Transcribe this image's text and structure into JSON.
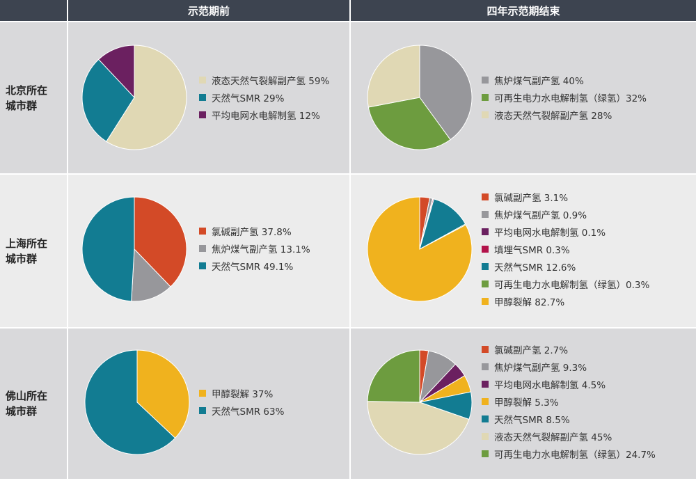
{
  "header": {
    "col_before": "示范期前",
    "col_after": "四年示范期结束"
  },
  "rows": [
    {
      "label_line1": "北京所在",
      "label_line2": "城市群",
      "before_legend": [
        "液态天然气裂解副产氢 59%",
        "天然气SMR 29%",
        "平均电网水电解制氢  12%"
      ],
      "after_legend": [
        "焦炉煤气副产氢  40%",
        "可再生电力水电解制氢（绿氢）32%",
        "液态天然气裂解副产氢 28%"
      ]
    },
    {
      "label_line1": "上海所在",
      "label_line2": "城市群",
      "before_legend": [
        "氯碱副产氢 37.8%",
        "焦炉煤气副产氢 13.1%",
        "天然气SMR 49.1%"
      ],
      "after_legend": [
        "氯碱副产氢 3.1%",
        "焦炉煤气副产氢  0.9%",
        "平均电网水电解制氢 0.1%",
        "填埋气SMR  0.3%",
        "天然气SMR 12.6%",
        "可再生电力水电解制氢（绿氢）0.3%",
        "甲醇裂解 82.7%"
      ]
    },
    {
      "label_line1": "佛山所在",
      "label_line2": "城市群",
      "before_legend": [
        "甲醇裂解 37%",
        "天然气SMR 63%"
      ],
      "after_legend": [
        "氯碱副产氢  2.7%",
        "焦炉煤气副产氢  9.3%",
        "平均电网水电解制氢  4.5%",
        "甲醇裂解 5.3%",
        "天然气SMR 8.5%",
        "液态天然气裂解副产氢 45%",
        "可再生电力水电解制氢（绿氢）24.7%"
      ]
    }
  ],
  "chart_data": [
    {
      "type": "pie",
      "labels": [
        "液态天然气裂解副产氢",
        "天然气SMR",
        "平均电网水电解制氢"
      ],
      "values": [
        59,
        29,
        12
      ],
      "colors": [
        "#e0d8b4",
        "#127c92",
        "#6b2060"
      ]
    },
    {
      "type": "pie",
      "labels": [
        "焦炉煤气副产氢",
        "可再生电力水电解制氢（绿氢）",
        "液态天然气裂解副产氢"
      ],
      "values": [
        40,
        32,
        28
      ],
      "colors": [
        "#97979b",
        "#6d9c3f",
        "#e0d8b4"
      ]
    },
    {
      "type": "pie",
      "labels": [
        "氯碱副产氢",
        "焦炉煤气副产氢",
        "天然气SMR"
      ],
      "values": [
        37.8,
        13.1,
        49.1
      ],
      "colors": [
        "#d34a27",
        "#97979b",
        "#127c92"
      ]
    },
    {
      "type": "pie",
      "labels": [
        "氯碱副产氢",
        "焦炉煤气副产氢",
        "平均电网水电解制氢",
        "填埋气SMR",
        "天然气SMR",
        "可再生电力水电解制氢（绿氢）",
        "甲醇裂解"
      ],
      "values": [
        3.1,
        0.9,
        0.1,
        0.3,
        12.6,
        0.3,
        82.7
      ],
      "colors": [
        "#d34a27",
        "#97979b",
        "#6b2060",
        "#b2124a",
        "#127c92",
        "#6d9c3f",
        "#f0b21e"
      ]
    },
    {
      "type": "pie",
      "labels": [
        "甲醇裂解",
        "天然气SMR"
      ],
      "values": [
        37,
        63
      ],
      "colors": [
        "#f0b21e",
        "#127c92"
      ]
    },
    {
      "type": "pie",
      "labels": [
        "氯碱副产氢",
        "焦炉煤气副产氢",
        "平均电网水电解制氢",
        "甲醇裂解",
        "天然气SMR",
        "液态天然气裂解副产氢",
        "可再生电力水电解制氢（绿氢）"
      ],
      "values": [
        2.7,
        9.3,
        4.5,
        5.3,
        8.5,
        45,
        24.7
      ],
      "colors": [
        "#d34a27",
        "#97979b",
        "#6b2060",
        "#f0b21e",
        "#127c92",
        "#e0d8b4",
        "#6d9c3f"
      ]
    }
  ]
}
